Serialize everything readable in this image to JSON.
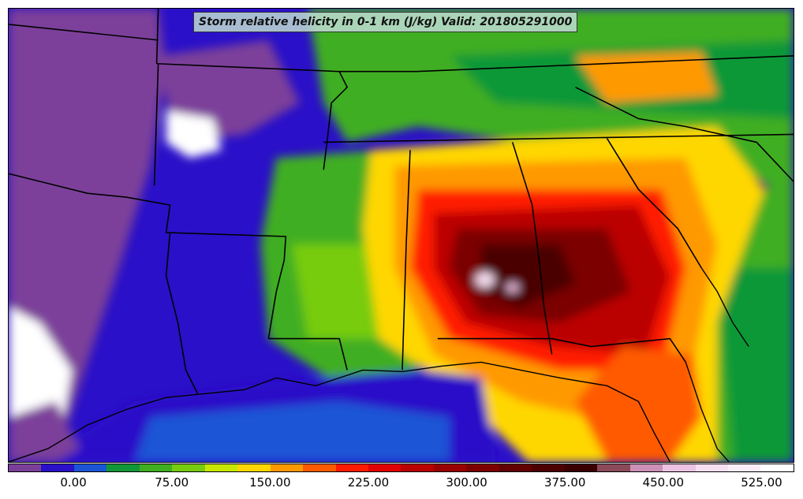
{
  "title": "Storm relative helicity in 0-1 km (J/kg) Valid: 201805291000",
  "colorbar": {
    "colors": [
      "#7b3f9a",
      "#2a10c8",
      "#1b55d6",
      "#109838",
      "#3fae20",
      "#77cc10",
      "#c8e800",
      "#ffd700",
      "#ff9900",
      "#ff5a00",
      "#ff1a00",
      "#e00000",
      "#bb0000",
      "#990000",
      "#7c0000",
      "#620000",
      "#4c0000",
      "#3a0000",
      "#8a4a5a",
      "#cc8fb5",
      "#ecc3e3",
      "#f7dff2",
      "#fbeefa",
      "#ffffff"
    ],
    "labels": [
      "0.00",
      "75.00",
      "150.00",
      "225.00",
      "300.00",
      "375.00",
      "450.00",
      "525.00"
    ]
  },
  "features": {
    "states": "state-boundaries",
    "coast": "gulf-coastline"
  }
}
